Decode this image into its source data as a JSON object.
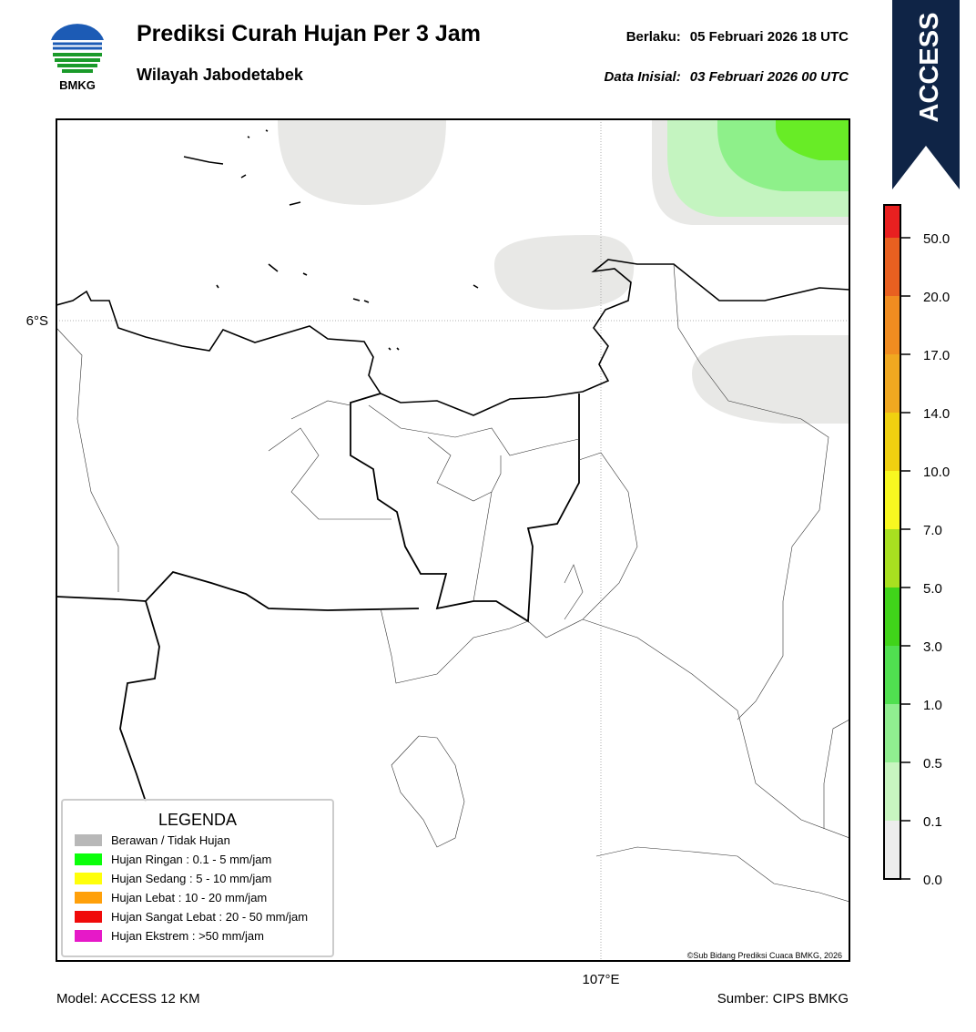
{
  "header": {
    "logo_text": "BMKG",
    "title": "Prediksi Curah Hujan Per 3 Jam",
    "subtitle": "Wilayah Jabodetabek",
    "valid": {
      "label": "Berlaku:",
      "value": "05 Februari 2026 18 UTC"
    },
    "initial": {
      "label": "Data Inisial:",
      "value": "03 Februari 2026 00 UTC"
    }
  },
  "badge": "ACCESS",
  "map": {
    "lat_label": "6°S",
    "lon_label": "107°E",
    "credit": "©Sub Bidang Prediksi Cuaca BMKG, 2026"
  },
  "colorbar": {
    "ticks": [
      "0.0",
      "0.1",
      "0.5",
      "1.0",
      "3.0",
      "5.0",
      "7.0",
      "10.0",
      "14.0",
      "17.0",
      "20.0",
      "50.0"
    ]
  },
  "legend": {
    "title": "LEGENDA",
    "items": [
      "Berawan / Tidak Hujan",
      "Hujan Ringan : 0.1 - 5 mm/jam",
      "Hujan Sedang : 5 - 10 mm/jam",
      "Hujan Lebat : 10 - 20 mm/jam",
      "Hujan Sangat Lebat : 20 - 50 mm/jam",
      "Hujan Ekstrem : >50 mm/jam"
    ]
  },
  "footer": {
    "model": "Model: ACCESS 12 KM",
    "source": "Sumber: CIPS BMKG"
  }
}
